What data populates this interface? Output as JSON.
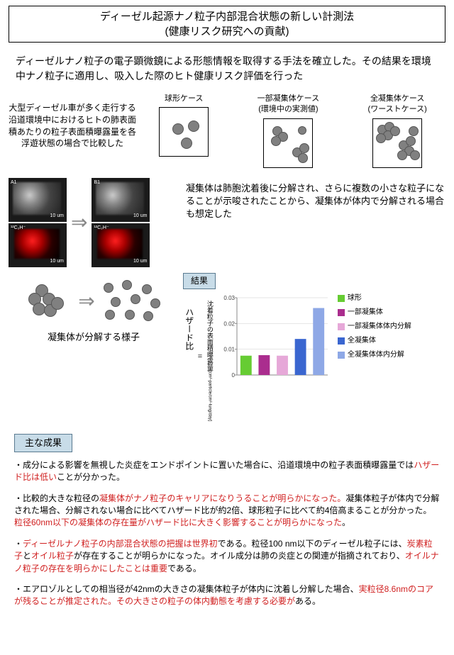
{
  "title": {
    "line1": "ディーゼル起源ナノ粒子内部混合状態の新しい計測法",
    "line2": "(健康リスク研究への貢献)"
  },
  "intro": "ディーゼルナノ粒子の電子顕微鏡による形態情報を取得する手法を確立した。その結果を環境中ナノ粒子に適用し、吸入した際のヒト健康リスク評価を行った",
  "cases": {
    "leftText": "大型ディーゼル車が多く走行する沿道環境中におけるヒトの肺表面積あたりの粒子表面積曝露量を各浮遊状態の場合で比較した",
    "items": [
      {
        "label": "球形ケース",
        "sub": ""
      },
      {
        "label": "一部凝集体ケース",
        "sub": "(環境中の実測値)"
      },
      {
        "label": "全凝集体ケース",
        "sub": "(ワーストケース)"
      }
    ]
  },
  "em": {
    "corners": [
      "A1",
      "B1",
      "A2",
      "B2"
    ],
    "scale": "10 um",
    "isotope": "¹²C₂H⁻"
  },
  "middleText": "凝集体は肺胞沈着後に分解され、さらに複数の小さな粒子になることが示唆されたことから、凝集体が体内で分解される場合も想定した",
  "decompCaption": "凝集体が分解する様子",
  "resultLabel": "結果",
  "chart": {
    "yLabelOuter": "ハザード比",
    "eq": "=",
    "yLabelInner": "沈着粒子の表面積曝露量",
    "yUnit": "[cm²-particle/cm²-lung/day]",
    "ylim": [
      0,
      0.03
    ],
    "yticks": [
      "0",
      "0.01",
      "0.02",
      "0.03"
    ],
    "values": [
      0.0075,
      0.0077,
      0.0075,
      0.014,
      0.026
    ],
    "colors": [
      "#66cc33",
      "#aa2d8e",
      "#e6a8d8",
      "#3a66d0",
      "#8ea8e6"
    ],
    "grid_color": "#cccccc",
    "axis_color": "#888888",
    "bg": "#ffffff"
  },
  "legend": [
    {
      "label": "球形",
      "color": "#66cc33"
    },
    {
      "label": "一部凝集体",
      "color": "#aa2d8e"
    },
    {
      "label": "一部凝集体体内分解",
      "color": "#e6a8d8"
    },
    {
      "label": "全凝集体",
      "color": "#3a66d0"
    },
    {
      "label": "全凝集体体内分解",
      "color": "#8ea8e6"
    }
  ],
  "sectionLabel": "主な成果",
  "bullets": [
    {
      "parts": [
        {
          "t": "・成分による影響を無視した炎症をエンドポイントに置いた場合に、沿道環境中の粒子表面積曝露量では"
        },
        {
          "t": "ハザード比は低い",
          "hl": true
        },
        {
          "t": "ことが分かった。"
        }
      ]
    },
    {
      "parts": [
        {
          "t": "・比較的大きな粒径の"
        },
        {
          "t": "凝集体がナノ粒子のキャリアになりうることが明らかになった。",
          "hl": true
        },
        {
          "t": "凝集体粒子が体内で分解された場合、分解されない場合に比べてハザード比が約2倍、球形粒子に比べて約4倍高まることが分かった。"
        },
        {
          "t": "粒径60nm以下の凝集体の存在量がハザード比に大きく影響することが明らかになった",
          "hl": true
        },
        {
          "t": "。"
        }
      ]
    },
    {
      "parts": [
        {
          "t": "・"
        },
        {
          "t": "ディーゼルナノ粒子の内部混合状態の把握は世界初",
          "hl": true
        },
        {
          "t": "である。粒径100 nm以下のディーゼル粒子には、"
        },
        {
          "t": "炭素粒子",
          "hl": true
        },
        {
          "t": "と"
        },
        {
          "t": "オイル粒子",
          "hl": true
        },
        {
          "t": "が存在することが明らかになった。オイル成分は肺の炎症との関連が指摘されており、"
        },
        {
          "t": "オイルナノ粒子の存在を明らかにしたことは重要",
          "hl": true
        },
        {
          "t": "である。"
        }
      ]
    },
    {
      "parts": [
        {
          "t": "・エアロゾルとしての相当径が42nmの大きさの凝集体粒子が体内に沈着し分解した場合、"
        },
        {
          "t": "実粒径8.6nmのコアが残ることが推定された。その大きさの粒子の体内動態を考慮する必要が",
          "hl": true
        },
        {
          "t": "ある。"
        }
      ]
    }
  ]
}
